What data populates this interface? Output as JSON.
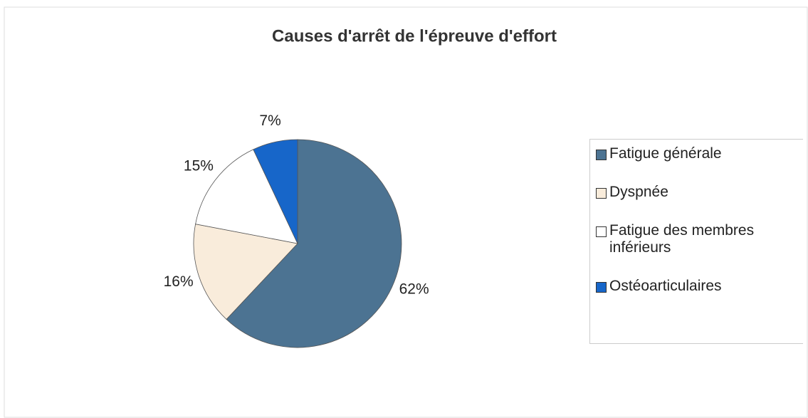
{
  "chart_data": {
    "type": "pie",
    "title": "Causes d'arrêt de l'épreuve d'effort",
    "categories": [
      "Fatigue générale",
      "Dyspnée",
      "Fatigue des membres inférieurs",
      "Ostéoarticulaires"
    ],
    "values": [
      62,
      16,
      15,
      7
    ],
    "value_labels": [
      "62%",
      "16%",
      "15%",
      "7%"
    ],
    "colors": [
      "#4c7392",
      "#f9ecdb",
      "#ffffff",
      "#1766c9"
    ],
    "legend": "right"
  }
}
